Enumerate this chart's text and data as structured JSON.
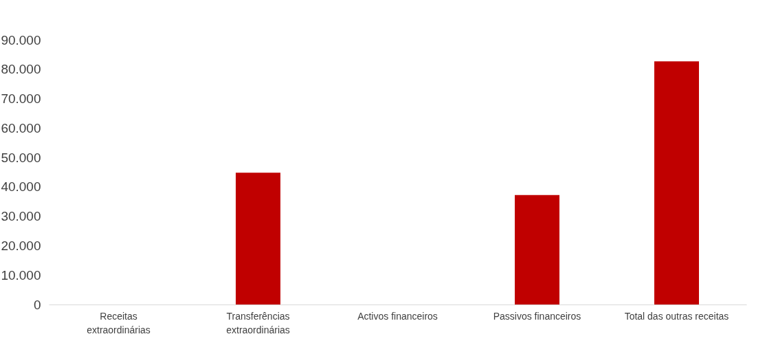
{
  "chart_data": {
    "type": "bar",
    "categories": [
      "Receitas\nextraordinárias",
      "Transferências\nextraordinárias",
      "Activos financeiros",
      "Passivos financeiros",
      "Total das outras receitas"
    ],
    "values": [
      0,
      44800,
      0,
      37200,
      82700
    ],
    "color": "#c00000",
    "ylim": [
      0,
      90000
    ],
    "yticks": [
      {
        "value": 0,
        "label": "0"
      },
      {
        "value": 10000,
        "label": "10.000"
      },
      {
        "value": 20000,
        "label": "20.000"
      },
      {
        "value": 30000,
        "label": "30.000"
      },
      {
        "value": 40000,
        "label": "40.000"
      },
      {
        "value": 50000,
        "label": "50.000"
      },
      {
        "value": 60000,
        "label": "60.000"
      },
      {
        "value": 70000,
        "label": "70.000"
      },
      {
        "value": 80000,
        "label": "80.000"
      },
      {
        "value": 90000,
        "label": "90.000"
      }
    ],
    "grid": false
  }
}
